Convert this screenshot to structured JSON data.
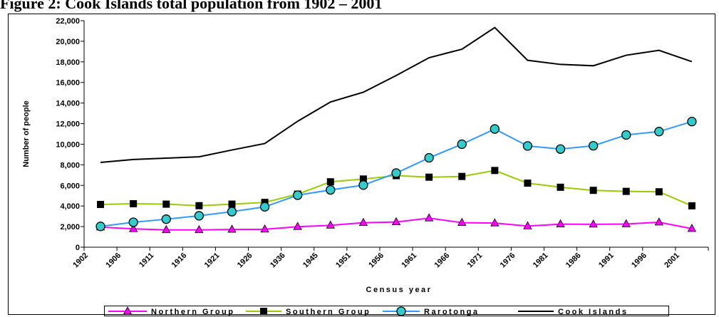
{
  "title": "Figure 2: Cook Islands total population from 1902 – 2001",
  "chart_data": {
    "type": "line",
    "title": "Figure 2: Cook Islands total population from 1902 – 2001",
    "xlabel": "Census year",
    "ylabel": "Number of people",
    "ylim": [
      0,
      22000
    ],
    "y_ticks": [
      "0",
      "2,000",
      "4,000",
      "6,000",
      "8,000",
      "10,000",
      "12,000",
      "14,000",
      "16,000",
      "18,000",
      "20,000",
      "22,000"
    ],
    "categories": [
      "1902",
      "1906",
      "1911",
      "1916",
      "1921",
      "1926",
      "1936",
      "1945",
      "1951",
      "1956",
      "1961",
      "1966",
      "1971",
      "1976",
      "1981",
      "1986",
      "1991",
      "1996",
      "2001"
    ],
    "legend_position": "bottom",
    "grid": false,
    "series": [
      {
        "name": "Northern Group",
        "color": "#ff00ff",
        "marker": "triangle",
        "values": [
          1950,
          1780,
          1680,
          1680,
          1720,
          1740,
          1990,
          2120,
          2380,
          2450,
          2820,
          2380,
          2340,
          2050,
          2240,
          2220,
          2250,
          2420,
          1800
        ]
      },
      {
        "name": "Southern Group",
        "color": "#99cc00",
        "marker": "square",
        "values": [
          4150,
          4220,
          4180,
          4030,
          4180,
          4350,
          5150,
          6350,
          6620,
          6950,
          6800,
          6870,
          7450,
          6220,
          5820,
          5520,
          5420,
          5380,
          4020
        ]
      },
      {
        "name": "Rarotonga",
        "color": "#3399ff",
        "marker": "circle",
        "values": [
          2020,
          2420,
          2720,
          3050,
          3450,
          3920,
          5050,
          5560,
          6030,
          7200,
          8680,
          10000,
          11480,
          9830,
          9530,
          9850,
          10900,
          11230,
          12200
        ]
      },
      {
        "name": "Cook Islands",
        "color": "#000000",
        "marker": "none",
        "values": [
          8230,
          8520,
          8650,
          8780,
          9440,
          10070,
          12230,
          14100,
          15050,
          16670,
          18400,
          19230,
          21330,
          18150,
          17750,
          17620,
          18640,
          19120,
          18020
        ]
      }
    ]
  }
}
